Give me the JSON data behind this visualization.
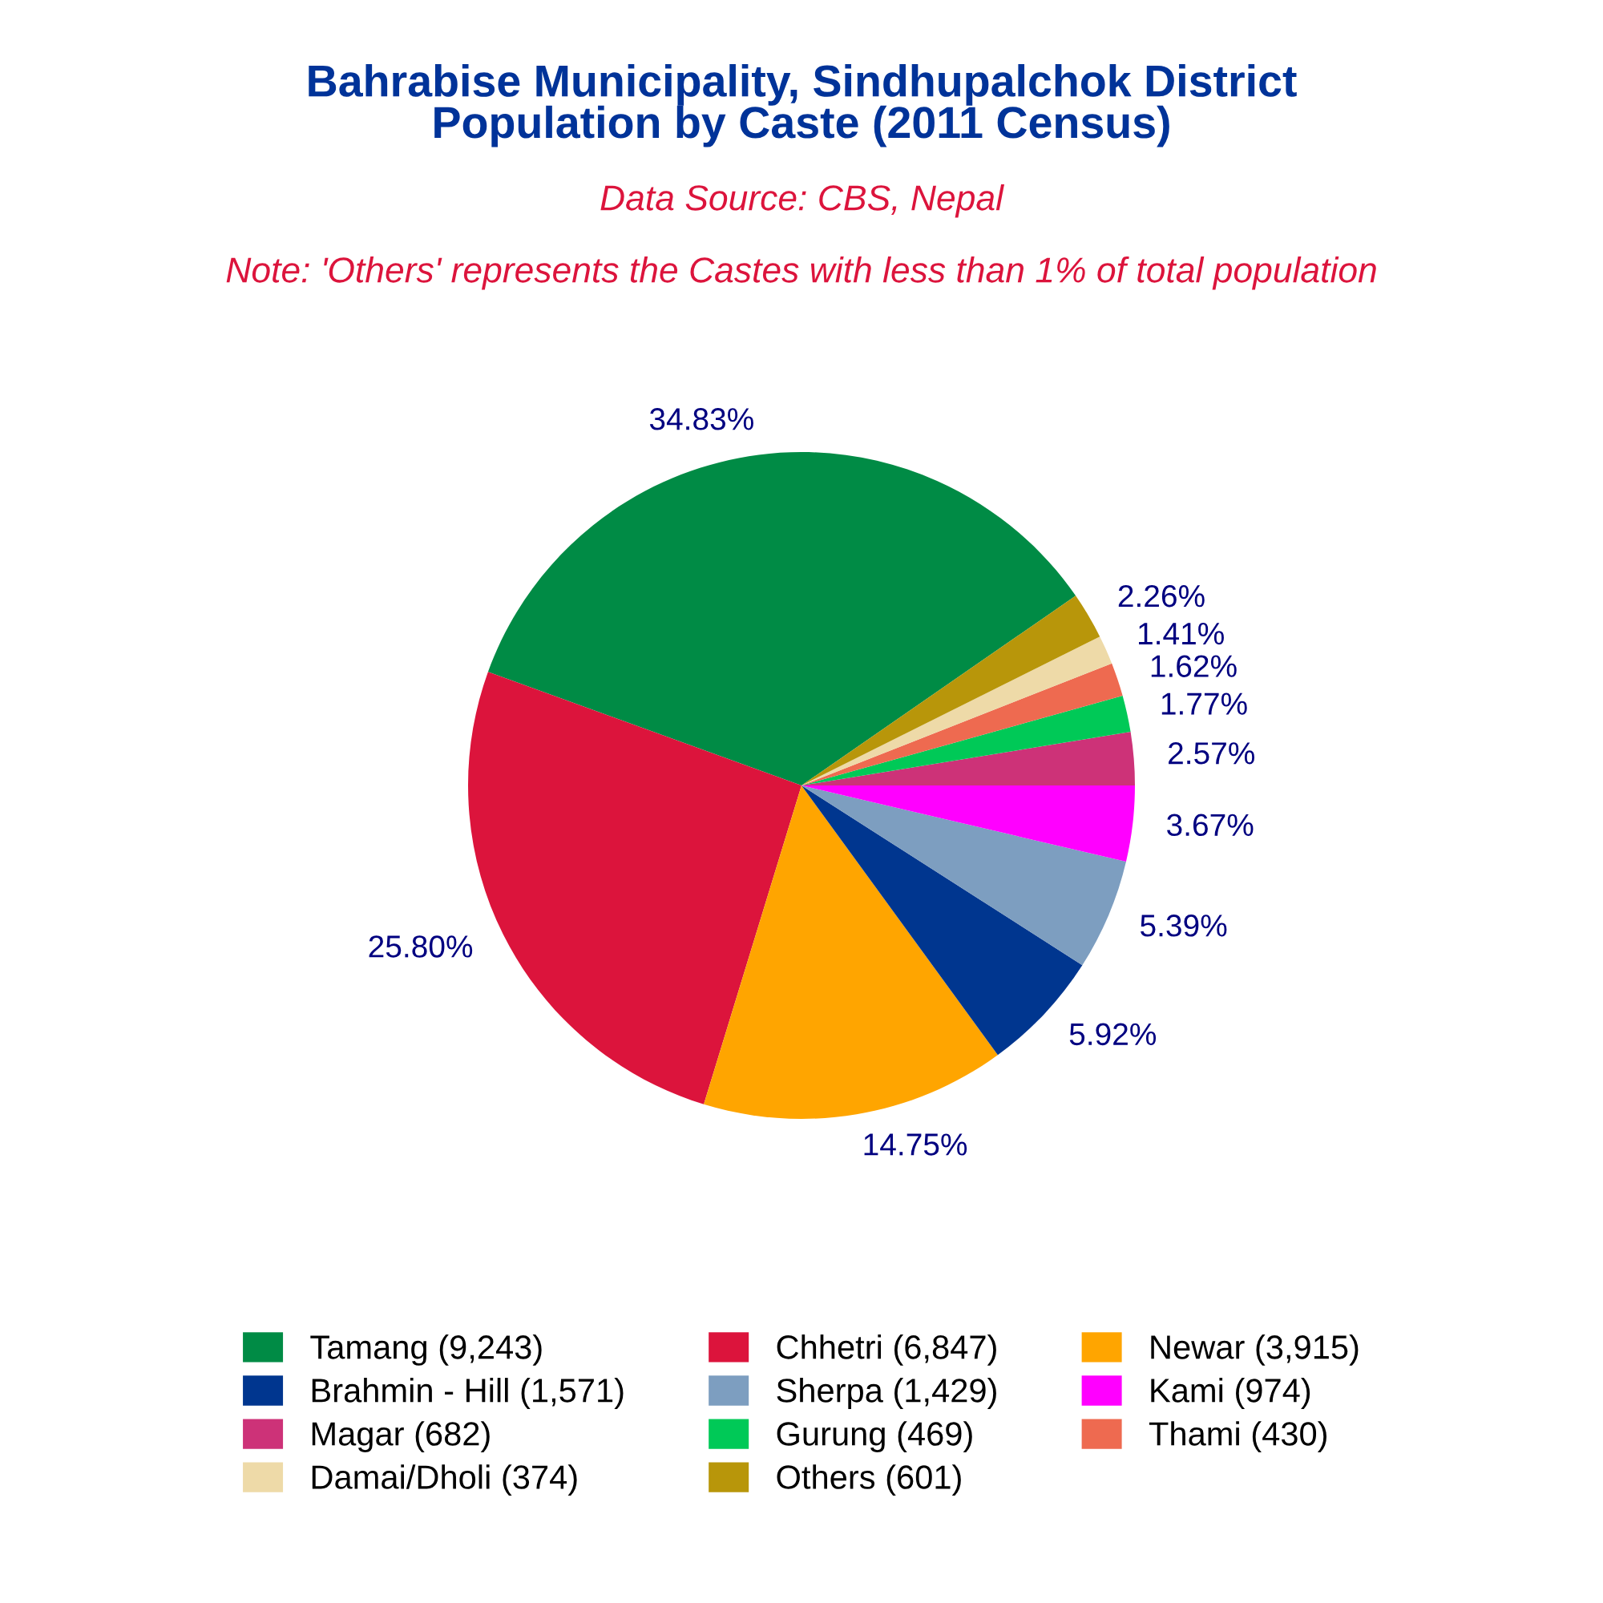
{
  "chart_data": {
    "type": "pie",
    "title": "Bahrabise Municipality, Sindhupalchok District\nPopulation by Caste (2011 Census)",
    "annotations": [
      "Data Source: CBS, Nepal",
      "Note: 'Others' represents the Castes with less than 1% of total population"
    ],
    "categories": [
      "Tamang (9,243)",
      "Chhetri (6,847)",
      "Newar (3,915)",
      "Brahmin - Hill (1,571)",
      "Sherpa (1,429)",
      "Kami (974)",
      "Magar (682)",
      "Gurung (469)",
      "Thami (430)",
      "Damai/Dholi (374)",
      "Others (601)"
    ],
    "values": [
      34.83,
      25.8,
      14.75,
      5.92,
      5.39,
      3.67,
      2.57,
      1.77,
      1.62,
      1.41,
      2.26
    ],
    "value_labels": [
      "34.83%",
      "25.80%",
      "14.75%",
      "5.92%",
      "5.39%",
      "3.67%",
      "2.57%",
      "1.77%",
      "1.62%",
      "1.41%",
      "2.26%"
    ],
    "colors": [
      "#008b45",
      "#dc143c",
      "#ffa500",
      "#00368f",
      "#7d9ec0",
      "#ff00ff",
      "#cd3278",
      "#00c957",
      "#ee6a50",
      "#eedaa8",
      "#b8960a"
    ],
    "legend": "bottom"
  }
}
